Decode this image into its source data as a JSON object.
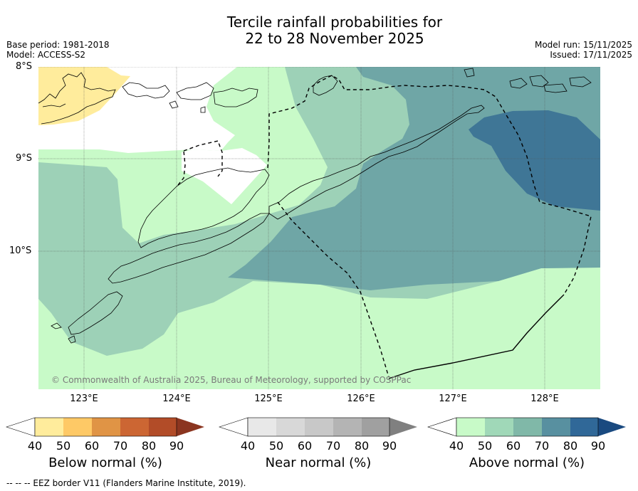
{
  "title": {
    "line1": "Tercile rainfall probabilities for",
    "line2": "22 to 28 November 2025"
  },
  "meta_left": {
    "base_period": "Base period: 1981-2018",
    "model": "Model: ACCESS-S2"
  },
  "meta_right": {
    "model_run": "Model run: 15/11/2025",
    "issued": "Issued: 17/11/2025"
  },
  "axes": {
    "lat_labels": [
      "8°S",
      "9°S",
      "10°S"
    ],
    "lon_labels": [
      "123°E",
      "124°E",
      "125°E",
      "126°E",
      "127°E",
      "128°E"
    ]
  },
  "copyright": "© Commonwealth of Australia 2025, Bureau of Meteorology, supported by COSPPac",
  "colorbars": [
    {
      "title": "Below normal (%)",
      "ticks": [
        "40",
        "50",
        "60",
        "70",
        "80",
        "90"
      ],
      "colors": [
        "#ffffff",
        "#ffec9c",
        "#fec966",
        "#e09445",
        "#cc6633",
        "#b24c28",
        "#8b3520"
      ]
    },
    {
      "title": "Near normal (%)",
      "ticks": [
        "40",
        "50",
        "60",
        "70",
        "80",
        "90"
      ],
      "colors": [
        "#ffffff",
        "#e8e8e8",
        "#d8d8d8",
        "#c8c8c8",
        "#b4b4b4",
        "#a0a0a0",
        "#808080"
      ]
    },
    {
      "title": "Above normal (%)",
      "ticks": [
        "40",
        "50",
        "60",
        "70",
        "80",
        "90"
      ],
      "colors": [
        "#ffffff",
        "#c8fac8",
        "#a0d8b8",
        "#80b8a8",
        "#5890a0",
        "#306898",
        "#1a4a80"
      ]
    }
  ],
  "footnote": "--  --  -- EEZ border V11 (Flanders Marine Institute, 2019).",
  "map_colors": {
    "below_40_50": "#ffec9c",
    "above_40_50": "#c8fac8",
    "above_50_60": "#9dd1b7",
    "above_60_70": "#6fa6a6",
    "above_70_80": "#3f7696"
  }
}
